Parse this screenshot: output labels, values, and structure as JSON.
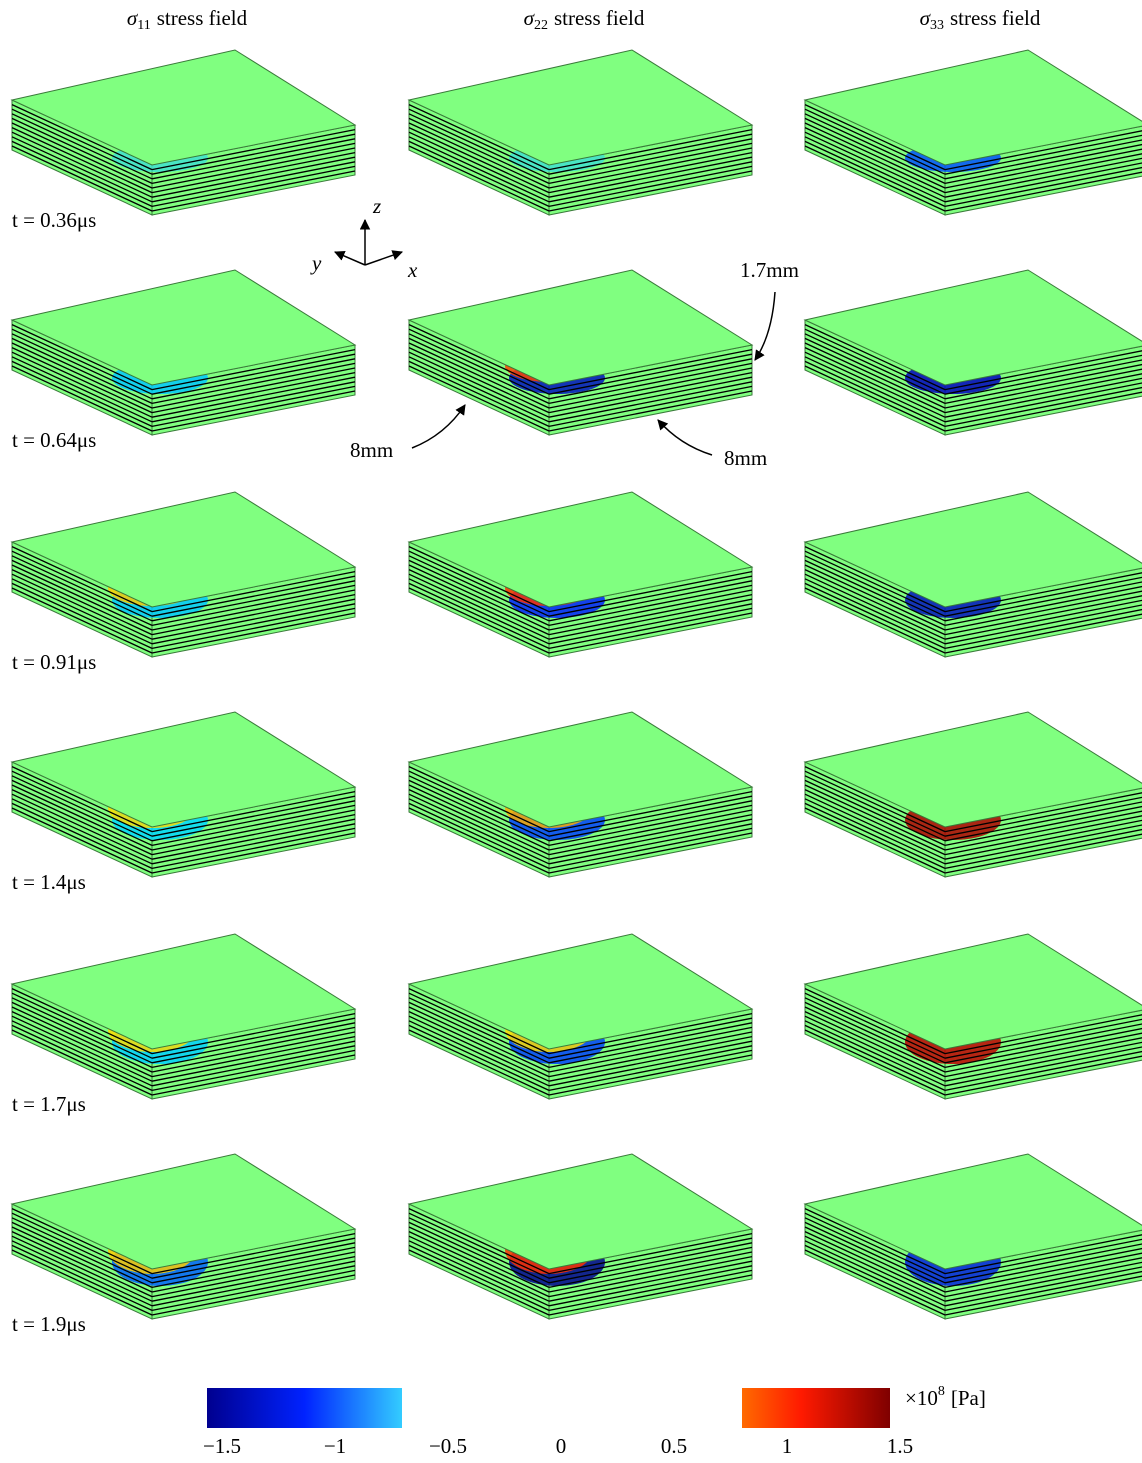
{
  "headers": [
    {
      "symbol": "σ",
      "subscript": "11",
      "text": "stress field"
    },
    {
      "symbol": "σ",
      "subscript": "22",
      "text": "stress field"
    },
    {
      "symbol": "σ",
      "subscript": "33",
      "text": "stress field"
    }
  ],
  "times": [
    "t = 0.36μs",
    "t = 0.64μs",
    "t = 0.91μs",
    "t = 1.4μs",
    "t = 1.7μs",
    "t = 1.9μs"
  ],
  "axes": {
    "z": "z",
    "y": "y",
    "x": "x"
  },
  "dimensions": {
    "thickness": "1.7mm",
    "width": "8mm",
    "depth": "8mm"
  },
  "colorbar": {
    "lim": [
      -1.5,
      1.5
    ],
    "ticks": [
      {
        "value": -1.5,
        "label": "−1.5"
      },
      {
        "value": -1,
        "label": "−1"
      },
      {
        "value": -0.5,
        "label": "−0.5"
      },
      0,
      0.5,
      1,
      1.5
    ],
    "unit": {
      "base": "×10",
      "exponent": "8",
      "label": "[Pa]"
    }
  }
}
